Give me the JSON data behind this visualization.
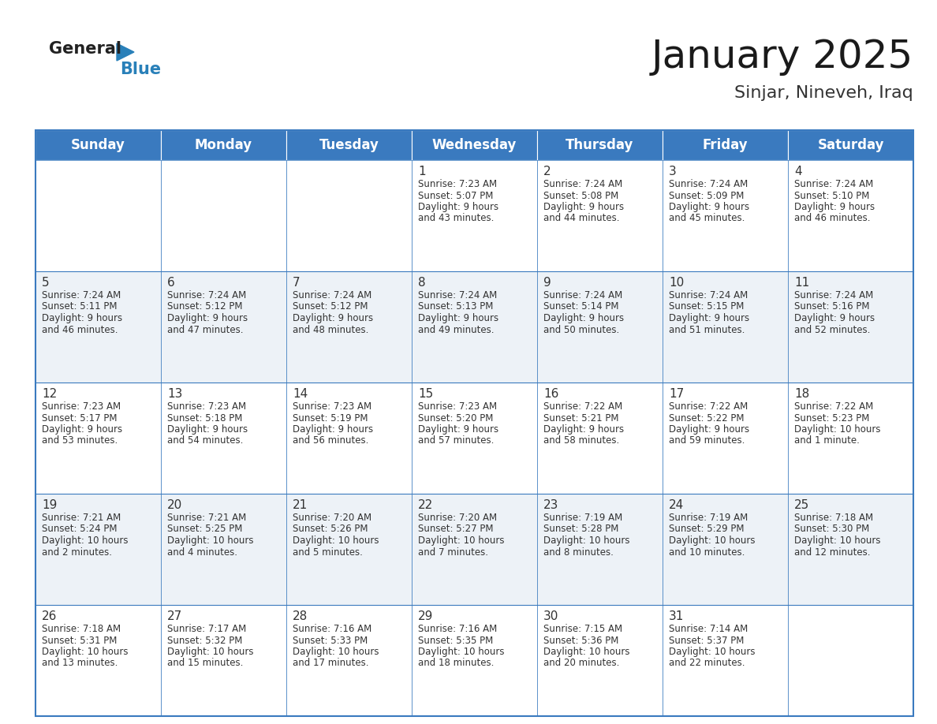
{
  "title": "January 2025",
  "subtitle": "Sinjar, Nineveh, Iraq",
  "header_color": "#3a7abf",
  "header_text_color": "#ffffff",
  "border_color": "#3a7abf",
  "day_names": [
    "Sunday",
    "Monday",
    "Tuesday",
    "Wednesday",
    "Thursday",
    "Friday",
    "Saturday"
  ],
  "title_fontsize": 36,
  "subtitle_fontsize": 16,
  "header_fontsize": 12,
  "day_num_fontsize": 11,
  "cell_fontsize": 8.5,
  "logo_general_fontsize": 15,
  "logo_blue_fontsize": 15,
  "days": [
    {
      "day": 1,
      "col": 3,
      "row": 0,
      "sunrise": "7:23 AM",
      "sunset": "5:07 PM",
      "daylight_h": "9 hours",
      "daylight_m": "43 minutes."
    },
    {
      "day": 2,
      "col": 4,
      "row": 0,
      "sunrise": "7:24 AM",
      "sunset": "5:08 PM",
      "daylight_h": "9 hours",
      "daylight_m": "44 minutes."
    },
    {
      "day": 3,
      "col": 5,
      "row": 0,
      "sunrise": "7:24 AM",
      "sunset": "5:09 PM",
      "daylight_h": "9 hours",
      "daylight_m": "45 minutes."
    },
    {
      "day": 4,
      "col": 6,
      "row": 0,
      "sunrise": "7:24 AM",
      "sunset": "5:10 PM",
      "daylight_h": "9 hours",
      "daylight_m": "46 minutes."
    },
    {
      "day": 5,
      "col": 0,
      "row": 1,
      "sunrise": "7:24 AM",
      "sunset": "5:11 PM",
      "daylight_h": "9 hours",
      "daylight_m": "46 minutes."
    },
    {
      "day": 6,
      "col": 1,
      "row": 1,
      "sunrise": "7:24 AM",
      "sunset": "5:12 PM",
      "daylight_h": "9 hours",
      "daylight_m": "47 minutes."
    },
    {
      "day": 7,
      "col": 2,
      "row": 1,
      "sunrise": "7:24 AM",
      "sunset": "5:12 PM",
      "daylight_h": "9 hours",
      "daylight_m": "48 minutes."
    },
    {
      "day": 8,
      "col": 3,
      "row": 1,
      "sunrise": "7:24 AM",
      "sunset": "5:13 PM",
      "daylight_h": "9 hours",
      "daylight_m": "49 minutes."
    },
    {
      "day": 9,
      "col": 4,
      "row": 1,
      "sunrise": "7:24 AM",
      "sunset": "5:14 PM",
      "daylight_h": "9 hours",
      "daylight_m": "50 minutes."
    },
    {
      "day": 10,
      "col": 5,
      "row": 1,
      "sunrise": "7:24 AM",
      "sunset": "5:15 PM",
      "daylight_h": "9 hours",
      "daylight_m": "51 minutes."
    },
    {
      "day": 11,
      "col": 6,
      "row": 1,
      "sunrise": "7:24 AM",
      "sunset": "5:16 PM",
      "daylight_h": "9 hours",
      "daylight_m": "52 minutes."
    },
    {
      "day": 12,
      "col": 0,
      "row": 2,
      "sunrise": "7:23 AM",
      "sunset": "5:17 PM",
      "daylight_h": "9 hours",
      "daylight_m": "53 minutes."
    },
    {
      "day": 13,
      "col": 1,
      "row": 2,
      "sunrise": "7:23 AM",
      "sunset": "5:18 PM",
      "daylight_h": "9 hours",
      "daylight_m": "54 minutes."
    },
    {
      "day": 14,
      "col": 2,
      "row": 2,
      "sunrise": "7:23 AM",
      "sunset": "5:19 PM",
      "daylight_h": "9 hours",
      "daylight_m": "56 minutes."
    },
    {
      "day": 15,
      "col": 3,
      "row": 2,
      "sunrise": "7:23 AM",
      "sunset": "5:20 PM",
      "daylight_h": "9 hours",
      "daylight_m": "57 minutes."
    },
    {
      "day": 16,
      "col": 4,
      "row": 2,
      "sunrise": "7:22 AM",
      "sunset": "5:21 PM",
      "daylight_h": "9 hours",
      "daylight_m": "58 minutes."
    },
    {
      "day": 17,
      "col": 5,
      "row": 2,
      "sunrise": "7:22 AM",
      "sunset": "5:22 PM",
      "daylight_h": "9 hours",
      "daylight_m": "59 minutes."
    },
    {
      "day": 18,
      "col": 6,
      "row": 2,
      "sunrise": "7:22 AM",
      "sunset": "5:23 PM",
      "daylight_h": "10 hours",
      "daylight_m": "1 minute."
    },
    {
      "day": 19,
      "col": 0,
      "row": 3,
      "sunrise": "7:21 AM",
      "sunset": "5:24 PM",
      "daylight_h": "10 hours",
      "daylight_m": "2 minutes."
    },
    {
      "day": 20,
      "col": 1,
      "row": 3,
      "sunrise": "7:21 AM",
      "sunset": "5:25 PM",
      "daylight_h": "10 hours",
      "daylight_m": "4 minutes."
    },
    {
      "day": 21,
      "col": 2,
      "row": 3,
      "sunrise": "7:20 AM",
      "sunset": "5:26 PM",
      "daylight_h": "10 hours",
      "daylight_m": "5 minutes."
    },
    {
      "day": 22,
      "col": 3,
      "row": 3,
      "sunrise": "7:20 AM",
      "sunset": "5:27 PM",
      "daylight_h": "10 hours",
      "daylight_m": "7 minutes."
    },
    {
      "day": 23,
      "col": 4,
      "row": 3,
      "sunrise": "7:19 AM",
      "sunset": "5:28 PM",
      "daylight_h": "10 hours",
      "daylight_m": "8 minutes."
    },
    {
      "day": 24,
      "col": 5,
      "row": 3,
      "sunrise": "7:19 AM",
      "sunset": "5:29 PM",
      "daylight_h": "10 hours",
      "daylight_m": "10 minutes."
    },
    {
      "day": 25,
      "col": 6,
      "row": 3,
      "sunrise": "7:18 AM",
      "sunset": "5:30 PM",
      "daylight_h": "10 hours",
      "daylight_m": "12 minutes."
    },
    {
      "day": 26,
      "col": 0,
      "row": 4,
      "sunrise": "7:18 AM",
      "sunset": "5:31 PM",
      "daylight_h": "10 hours",
      "daylight_m": "13 minutes."
    },
    {
      "day": 27,
      "col": 1,
      "row": 4,
      "sunrise": "7:17 AM",
      "sunset": "5:32 PM",
      "daylight_h": "10 hours",
      "daylight_m": "15 minutes."
    },
    {
      "day": 28,
      "col": 2,
      "row": 4,
      "sunrise": "7:16 AM",
      "sunset": "5:33 PM",
      "daylight_h": "10 hours",
      "daylight_m": "17 minutes."
    },
    {
      "day": 29,
      "col": 3,
      "row": 4,
      "sunrise": "7:16 AM",
      "sunset": "5:35 PM",
      "daylight_h": "10 hours",
      "daylight_m": "18 minutes."
    },
    {
      "day": 30,
      "col": 4,
      "row": 4,
      "sunrise": "7:15 AM",
      "sunset": "5:36 PM",
      "daylight_h": "10 hours",
      "daylight_m": "20 minutes."
    },
    {
      "day": 31,
      "col": 5,
      "row": 4,
      "sunrise": "7:14 AM",
      "sunset": "5:37 PM",
      "daylight_h": "10 hours",
      "daylight_m": "22 minutes."
    }
  ]
}
